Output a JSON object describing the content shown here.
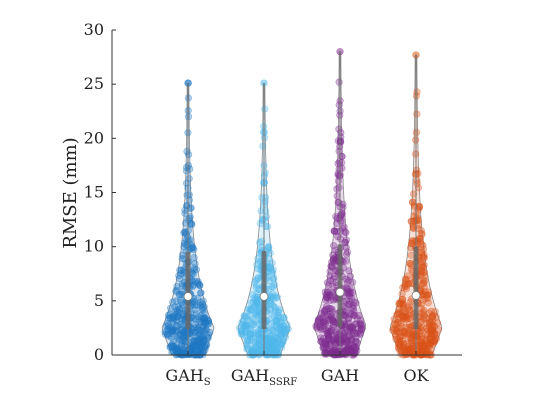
{
  "chart_data": {
    "type": "violin",
    "ylabel": "RMSE (mm)",
    "ylim": [
      0,
      30
    ],
    "yticks": [
      0,
      5,
      10,
      15,
      20,
      25,
      30
    ],
    "grid": false,
    "categories": [
      {
        "name": "GAH",
        "subscript": "S",
        "color": "#1f77c4",
        "median": 5.4,
        "q1": 2.4,
        "q3": 9.5,
        "max": 25.1
      },
      {
        "name": "GAH",
        "subscript": "SSRF",
        "color": "#4fb8ea",
        "median": 5.4,
        "q1": 2.4,
        "q3": 9.6,
        "max": 25.1
      },
      {
        "name": "GAH",
        "subscript": "",
        "color": "#7e2f8e",
        "median": 5.8,
        "q1": 2.6,
        "q3": 10.2,
        "max": 28.0
      },
      {
        "name": "OK",
        "subscript": "",
        "color": "#d95319",
        "median": 5.5,
        "q1": 2.4,
        "q3": 10.0,
        "max": 27.7
      }
    ]
  }
}
